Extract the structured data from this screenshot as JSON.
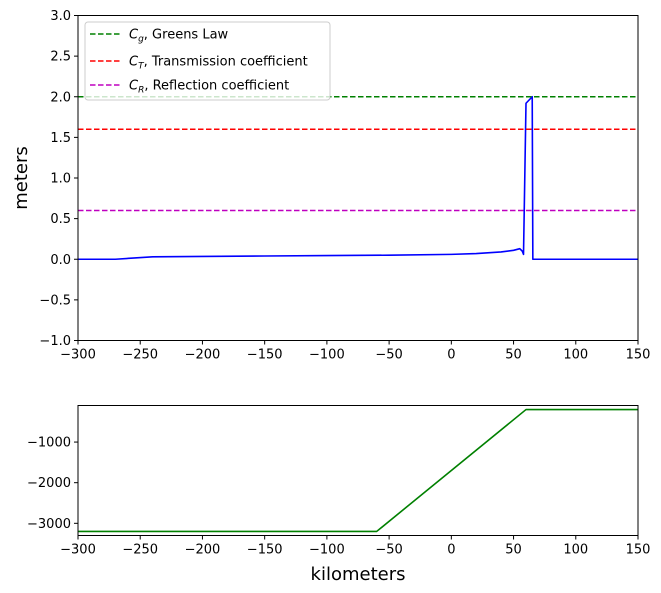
{
  "chart_data": [
    {
      "type": "line",
      "xlabel": "",
      "ylabel": "meters",
      "xlim": [
        -300,
        150
      ],
      "ylim": [
        -1.0,
        3.0
      ],
      "xticks": [
        -300,
        -250,
        -200,
        -150,
        -100,
        -50,
        0,
        50,
        100,
        150
      ],
      "yticks": [
        -1.0,
        -0.5,
        0.0,
        0.5,
        1.0,
        1.5,
        2.0,
        2.5,
        3.0
      ],
      "xtick_labels": [
        "−300",
        "−250",
        "−200",
        "−150",
        "−100",
        "−50",
        "0",
        "50",
        "100",
        "150"
      ],
      "ytick_labels": [
        "−1.0",
        "−0.5",
        "0.0",
        "0.5",
        "1.0",
        "1.5",
        "2.0",
        "2.5",
        "3.0"
      ],
      "grid": false,
      "legend_position": "top-left",
      "series": [
        {
          "style": "solid",
          "color": "#0000ff",
          "x": [
            -300,
            -270,
            -240,
            -200,
            -150,
            -100,
            -50,
            0,
            20,
            40,
            50,
            55,
            57,
            58,
            60,
            65,
            65.5,
            150
          ],
          "y": [
            0.0,
            0.0,
            0.03,
            0.035,
            0.04,
            0.045,
            0.05,
            0.06,
            0.07,
            0.09,
            0.11,
            0.13,
            0.1,
            0.06,
            1.92,
            2.0,
            0.0,
            0.0
          ]
        },
        {
          "name_main": "C",
          "name_sub": "g",
          "name_rest": ", Greens Law",
          "style": "dashed",
          "color": "#008000",
          "x": [
            -300,
            150
          ],
          "y": [
            2.0,
            2.0
          ]
        },
        {
          "name_main": "C",
          "name_sub": "T",
          "name_rest": ", Transmission coefficient",
          "style": "dashed",
          "color": "#ff0000",
          "x": [
            -300,
            150
          ],
          "y": [
            1.6,
            1.6
          ]
        },
        {
          "name_main": "C",
          "name_sub": "R",
          "name_rest": ", Reflection coefficient",
          "style": "dashed",
          "color": "#bf00bf",
          "x": [
            -300,
            150
          ],
          "y": [
            0.6,
            0.6
          ]
        }
      ]
    },
    {
      "type": "line",
      "xlabel": "kilometers",
      "ylabel": "",
      "xlim": [
        -300,
        150
      ],
      "ylim": [
        -3300,
        -100
      ],
      "xticks": [
        -300,
        -250,
        -200,
        -150,
        -100,
        -50,
        0,
        50,
        100,
        150
      ],
      "yticks": [
        -3000,
        -2000,
        -1000
      ],
      "xtick_labels": [
        "−300",
        "−250",
        "−200",
        "−150",
        "−100",
        "−50",
        "0",
        "50",
        "100",
        "150"
      ],
      "ytick_labels": [
        "−3000",
        "−2000",
        "−1000"
      ],
      "grid": false,
      "series": [
        {
          "style": "solid",
          "color": "#008000",
          "x": [
            -300,
            -60,
            60,
            150
          ],
          "y": [
            -3200,
            -3200,
            -200,
            -200
          ]
        }
      ]
    }
  ]
}
